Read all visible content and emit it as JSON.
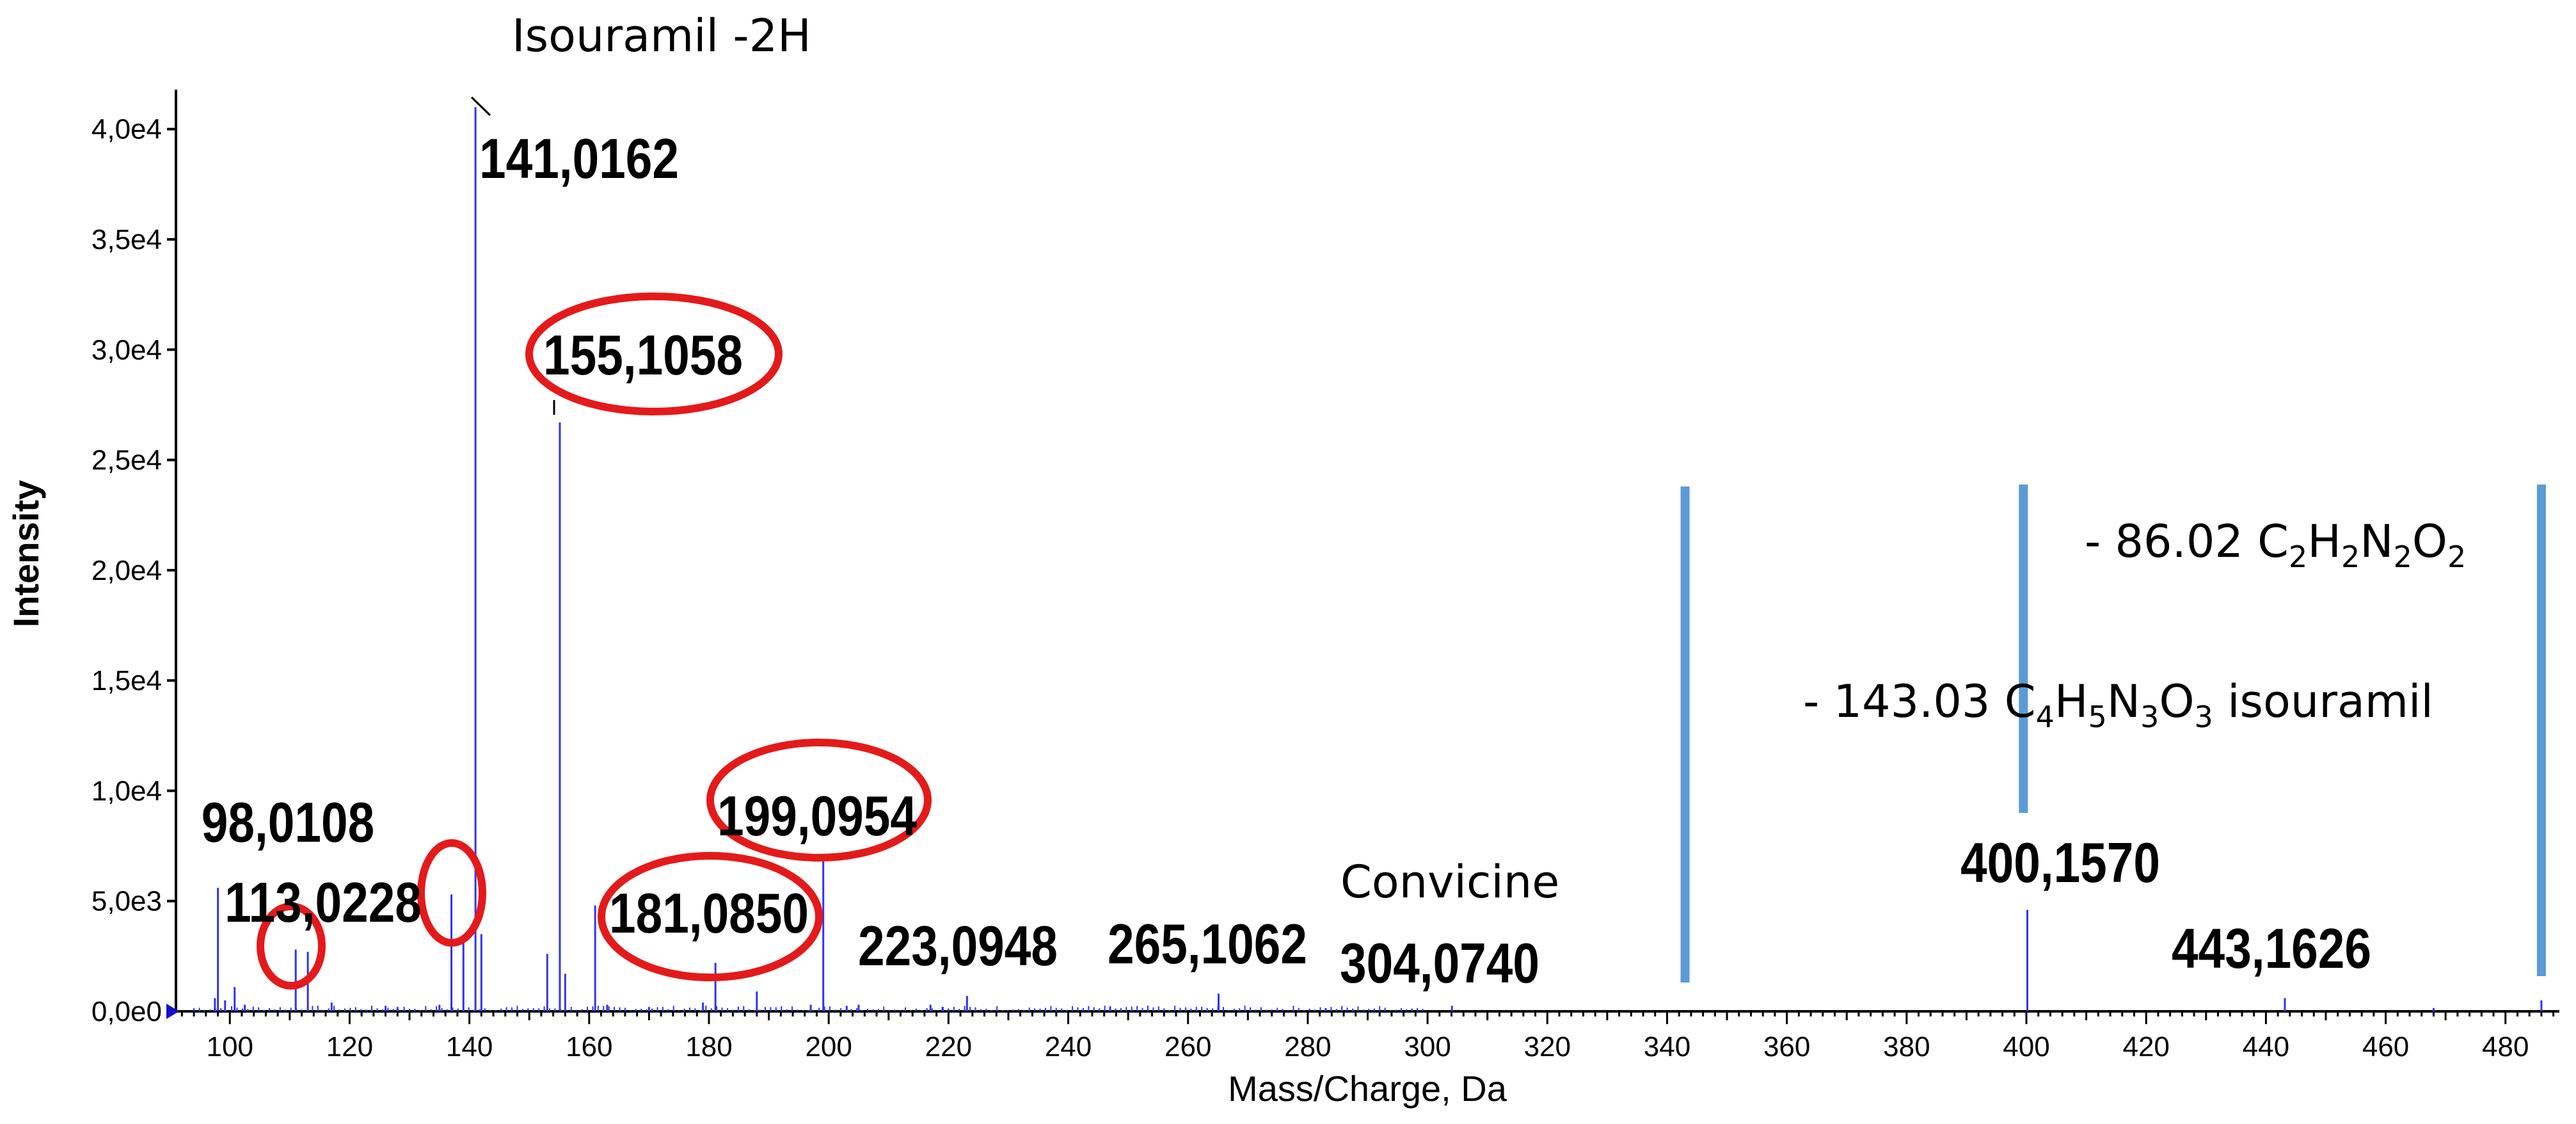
{
  "chart_data": {
    "type": "bar",
    "xlabel": "Mass/Charge, Da",
    "ylabel": "Intensity",
    "xlim": [
      91,
      489
    ],
    "ylim": [
      0,
      41500
    ],
    "grid": false,
    "x_ticks": [
      100,
      120,
      140,
      160,
      180,
      200,
      220,
      240,
      260,
      280,
      300,
      320,
      340,
      360,
      380,
      400,
      420,
      440,
      460,
      480
    ],
    "x_tick_labels": [
      "100",
      "120",
      "140",
      "160",
      "180",
      "200",
      "220",
      "240",
      "260",
      "280",
      "300",
      "320",
      "340",
      "360",
      "380",
      "400",
      "420",
      "440",
      "460",
      "480"
    ],
    "y_ticks": [
      0,
      5000,
      10000,
      15000,
      20000,
      25000,
      30000,
      35000,
      40000
    ],
    "y_tick_labels": [
      "0,0e0",
      "5,0e3",
      "1,0e4",
      "1,5e4",
      "2,0e4",
      "2,5e4",
      "3,0e4",
      "3,5e4",
      "4,0e4"
    ],
    "peaks": [
      {
        "mz": 97.5,
        "intensity": 600
      },
      {
        "mz": 98.0108,
        "intensity": 5600
      },
      {
        "mz": 99.2,
        "intensity": 500
      },
      {
        "mz": 100.8,
        "intensity": 1100
      },
      {
        "mz": 102.5,
        "intensity": 300
      },
      {
        "mz": 111.0,
        "intensity": 2800
      },
      {
        "mz": 113.0228,
        "intensity": 2700
      },
      {
        "mz": 117.0,
        "intensity": 400
      },
      {
        "mz": 126.0,
        "intensity": 250
      },
      {
        "mz": 128.0,
        "intensity": 200
      },
      {
        "mz": 135.0,
        "intensity": 300
      },
      {
        "mz": 137.0,
        "intensity": 5300
      },
      {
        "mz": 139.0,
        "intensity": 3300
      },
      {
        "mz": 141.0162,
        "intensity": 41000
      },
      {
        "mz": 142.0,
        "intensity": 3500
      },
      {
        "mz": 153.0,
        "intensity": 2600
      },
      {
        "mz": 155.1058,
        "intensity": 26700
      },
      {
        "mz": 156.0,
        "intensity": 1700
      },
      {
        "mz": 161.0,
        "intensity": 4800
      },
      {
        "mz": 163.0,
        "intensity": 300
      },
      {
        "mz": 170.0,
        "intensity": 200
      },
      {
        "mz": 179.0,
        "intensity": 400
      },
      {
        "mz": 181.085,
        "intensity": 2200
      },
      {
        "mz": 188.0,
        "intensity": 900
      },
      {
        "mz": 197.0,
        "intensity": 300
      },
      {
        "mz": 199.0954,
        "intensity": 6800
      },
      {
        "mz": 203.0,
        "intensity": 250
      },
      {
        "mz": 205.0,
        "intensity": 300
      },
      {
        "mz": 217.0,
        "intensity": 300
      },
      {
        "mz": 219.0,
        "intensity": 200
      },
      {
        "mz": 223.0948,
        "intensity": 700
      },
      {
        "mz": 247.0,
        "intensity": 200
      },
      {
        "mz": 265.1062,
        "intensity": 800
      },
      {
        "mz": 283.0,
        "intensity": 150
      },
      {
        "mz": 304.074,
        "intensity": 250
      },
      {
        "mz": 400.157,
        "intensity": 4600
      },
      {
        "mz": 443.1626,
        "intensity": 600
      },
      {
        "mz": 468.0,
        "intensity": 150
      },
      {
        "mz": 486.0,
        "intensity": 500
      }
    ],
    "peak_labels": [
      {
        "text": "98,0108",
        "mz": 98.0108,
        "circled": false
      },
      {
        "text": "113,0228",
        "mz": 113.0228,
        "circled": false
      },
      {
        "text": "141,0162",
        "mz": 141.0162,
        "circled": false
      },
      {
        "text": "155,1058",
        "mz": 155.1058,
        "circled": true
      },
      {
        "text": "181,0850",
        "mz": 181.085,
        "circled": true
      },
      {
        "text": "199,0954",
        "mz": 199.0954,
        "circled": true
      },
      {
        "text": "223,0948",
        "mz": 223.0948,
        "circled": false
      },
      {
        "text": "265,1062",
        "mz": 265.1062,
        "circled": false
      },
      {
        "text": "304,0740",
        "mz": 304.074,
        "circled": false
      },
      {
        "text": "400,1570",
        "mz": 400.157,
        "circled": false
      },
      {
        "text": "443,1626",
        "mz": 443.1626,
        "circled": false
      }
    ],
    "circled_peaks": [
      111.0,
      137.0
    ],
    "annotations": {
      "isouramil": "Isouramil -2H",
      "convicine": "Convicine",
      "loss_86_prefix": "- 86.02 C",
      "loss_86_sub1": "2",
      "loss_86_h": "H",
      "loss_86_sub2": "2",
      "loss_86_n": "N",
      "loss_86_sub3": "2",
      "loss_86_o": "O",
      "loss_86_sub4": "2",
      "loss_143_prefix": "- 143.03 C",
      "loss_143_sub1": "4",
      "loss_143_h": "H",
      "loss_143_sub2": "5",
      "loss_143_n": "N",
      "loss_143_sub3": "3",
      "loss_143_o": "O",
      "loss_143_sub4": "3",
      "loss_143_suffix": " isouramil"
    },
    "markers": [
      343.0,
      399.5,
      486.0
    ],
    "colors": {
      "peak": "#3333ee",
      "circle": "#e41a1a",
      "marker": "#5b9bd5",
      "axis": "#000000"
    }
  }
}
